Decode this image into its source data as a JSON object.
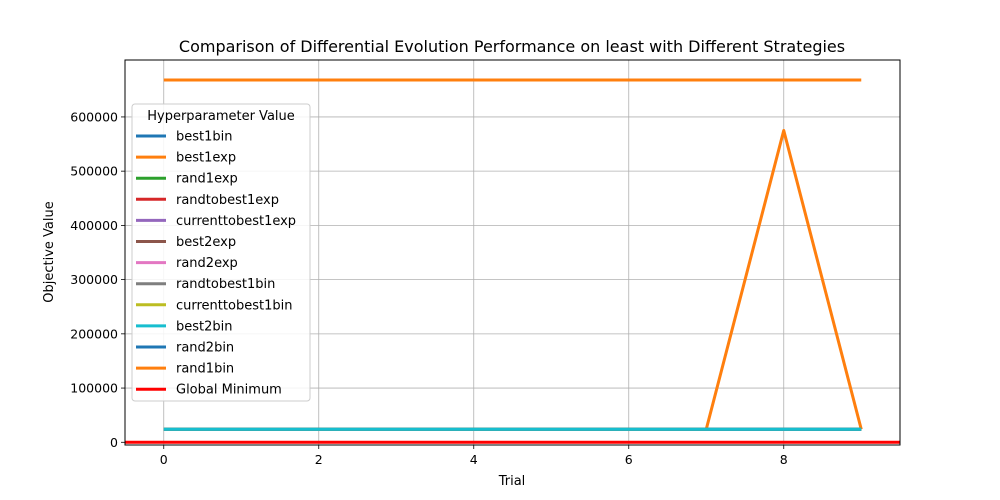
{
  "chart_data": {
    "type": "line",
    "title": "Comparison of Differential Evolution Performance on least with Different Strategies",
    "xlabel": "Trial",
    "ylabel": "Objective Value",
    "xlim": [
      -0.5,
      9.5
    ],
    "ylim": [
      -5000,
      705000
    ],
    "x_ticks": [
      0,
      2,
      4,
      6,
      8
    ],
    "y_ticks": [
      0,
      100000,
      200000,
      300000,
      400000,
      500000,
      600000
    ],
    "grid": true,
    "legend": {
      "title": "Hyperparameter Value",
      "placement": "center-left"
    },
    "x": [
      0,
      1,
      2,
      3,
      4,
      5,
      6,
      7,
      8,
      9
    ],
    "series": [
      {
        "name": "best1bin",
        "color": "#1f77b4",
        "values": [
          24000,
          24000,
          24000,
          24000,
          24000,
          24000,
          24000,
          24000,
          24000,
          24000
        ]
      },
      {
        "name": "best1exp",
        "color": "#ff7f0e",
        "values": [
          668000,
          668000,
          668000,
          668000,
          668000,
          668000,
          668000,
          668000,
          668000,
          668000
        ]
      },
      {
        "name": "rand1exp",
        "color": "#2ca02c",
        "values": [
          24000,
          24000,
          24000,
          24000,
          24000,
          24000,
          24000,
          24000,
          24000,
          24000
        ]
      },
      {
        "name": "randtobest1exp",
        "color": "#d62728",
        "values": [
          24000,
          24000,
          24000,
          24000,
          24000,
          24000,
          24000,
          24000,
          24000,
          24000
        ]
      },
      {
        "name": "currenttobest1exp",
        "color": "#9467bd",
        "values": [
          24000,
          24000,
          24000,
          24000,
          24000,
          24000,
          24000,
          24000,
          24000,
          24000
        ]
      },
      {
        "name": "best2exp",
        "color": "#8c564b",
        "values": [
          24000,
          24000,
          24000,
          24000,
          24000,
          24000,
          24000,
          24000,
          24000,
          24000
        ]
      },
      {
        "name": "rand2exp",
        "color": "#e377c2",
        "values": [
          24000,
          24000,
          24000,
          24000,
          24000,
          24000,
          24000,
          24000,
          24000,
          24000
        ]
      },
      {
        "name": "randtobest1bin",
        "color": "#7f7f7f",
        "values": [
          24000,
          24000,
          24000,
          24000,
          24000,
          24000,
          24000,
          24000,
          24000,
          24000
        ]
      },
      {
        "name": "rand1bin",
        "color": "#ff7f0e",
        "values": [
          24000,
          24000,
          24000,
          24000,
          24000,
          24000,
          24000,
          24000,
          575000,
          24000
        ]
      },
      {
        "name": "currenttobest1bin",
        "color": "#bcbd22",
        "values": [
          24000,
          24000,
          24000,
          24000,
          24000,
          24000,
          24000,
          24000,
          24000,
          24000
        ]
      },
      {
        "name": "rand2bin",
        "color": "#1f77b4",
        "values": [
          24000,
          24000,
          24000,
          24000,
          24000,
          24000,
          24000,
          24000,
          24000,
          24000
        ]
      },
      {
        "name": "best2bin",
        "color": "#17becf",
        "values": [
          24000,
          24000,
          24000,
          24000,
          24000,
          24000,
          24000,
          24000,
          24000,
          24000
        ]
      }
    ],
    "global_minimum": {
      "name": "Global Minimum",
      "color": "#ff0000",
      "value": 0
    },
    "legend_order": [
      "best1bin",
      "best1exp",
      "rand1exp",
      "randtobest1exp",
      "currenttobest1exp",
      "best2exp",
      "rand2exp",
      "randtobest1bin",
      "currenttobest1bin",
      "best2bin",
      "rand2bin",
      "rand1bin",
      "Global Minimum"
    ]
  }
}
